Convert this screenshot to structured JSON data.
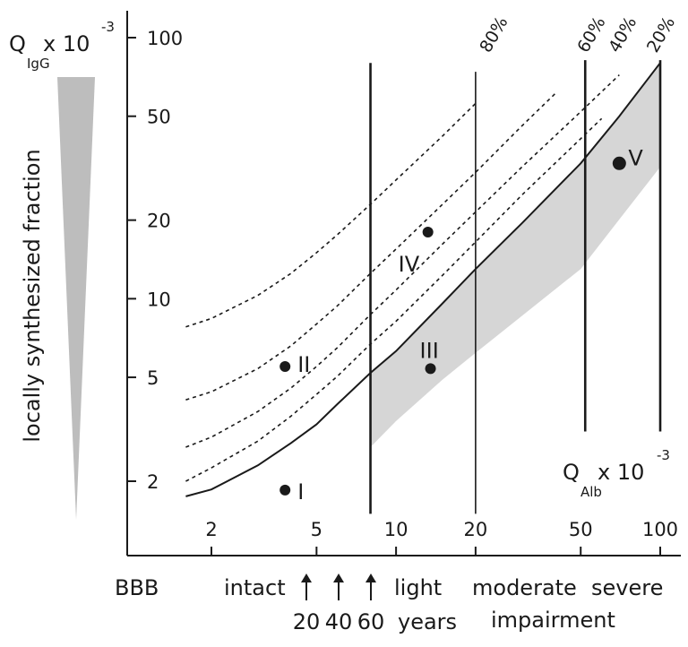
{
  "chart_data": {
    "type": "line",
    "title": "",
    "scale": "log-log",
    "y_axis": {
      "label_main": "Q",
      "label_sub": "IgG",
      "label_mult": "x 10",
      "label_exp": "-3",
      "range": [
        1.5,
        100
      ],
      "ticks": [
        {
          "value": 100,
          "label": "100"
        },
        {
          "value": 50,
          "label": "50"
        },
        {
          "value": 20,
          "label": "20"
        },
        {
          "value": 10,
          "label": "10"
        },
        {
          "value": 5,
          "label": "5"
        },
        {
          "value": 2,
          "label": "2"
        }
      ]
    },
    "x_axis": {
      "label_main": "Q",
      "label_sub": "Alb",
      "label_mult": "x 10",
      "label_exp": "-3",
      "range": [
        1.3,
        100
      ],
      "ticks": [
        {
          "value": 2,
          "label": "2"
        },
        {
          "value": 5,
          "label": "5"
        },
        {
          "value": 10,
          "label": "10"
        },
        {
          "value": 20,
          "label": "20"
        },
        {
          "value": 50,
          "label": "50"
        },
        {
          "value": 100,
          "label": "100"
        }
      ]
    },
    "vertical_lines": [
      {
        "x": 8,
        "y_top": 80,
        "y_bottom": 1.5,
        "weight": "thick"
      },
      {
        "x": 20,
        "y_top": 74,
        "y_bottom": 1.5,
        "weight": "thin"
      },
      {
        "x": 52,
        "y_top": 82,
        "y_bottom": 3.1,
        "weight": "thick"
      },
      {
        "x": 100,
        "y_top": 82,
        "y_bottom": 3.1,
        "weight": "thick"
      }
    ],
    "series": [
      {
        "style": "solid",
        "x": [
          1.6,
          2,
          3,
          4,
          5,
          6,
          8,
          10,
          15,
          20,
          30,
          50,
          70,
          100
        ],
        "y": [
          1.75,
          1.86,
          2.3,
          2.8,
          3.3,
          3.95,
          5.2,
          6.3,
          9.6,
          13,
          19.5,
          33,
          50,
          80
        ]
      },
      {
        "style": "dashed",
        "percent": "20%",
        "x": [
          1.6,
          2,
          3,
          4,
          5,
          6,
          8,
          10,
          15,
          20,
          30,
          50,
          60
        ],
        "y": [
          2.0,
          2.25,
          2.85,
          3.55,
          4.3,
          5.05,
          6.7,
          8.2,
          12.3,
          16.5,
          25,
          41,
          49
        ]
      },
      {
        "style": "dashed",
        "percent": "40%",
        "x": [
          1.6,
          2,
          3,
          4,
          5,
          6,
          8,
          10,
          15,
          20,
          30,
          50,
          70
        ],
        "y": [
          2.7,
          2.95,
          3.7,
          4.55,
          5.5,
          6.5,
          8.7,
          10.8,
          16.2,
          21.5,
          32,
          52,
          72
        ]
      },
      {
        "style": "dashed",
        "percent": "60%",
        "x": [
          1.6,
          2,
          3,
          4,
          5,
          6,
          8,
          10,
          15,
          20,
          30,
          40
        ],
        "y": [
          4.1,
          4.4,
          5.4,
          6.6,
          8,
          9.4,
          12.5,
          15.5,
          23,
          30.5,
          46,
          61
        ]
      },
      {
        "style": "dashed",
        "percent": "80%",
        "x": [
          1.6,
          2,
          3,
          4,
          5,
          6,
          8,
          10,
          15,
          20
        ],
        "y": [
          7.8,
          8.4,
          10.3,
          12.5,
          15,
          17.6,
          23,
          28.5,
          42,
          56
        ]
      }
    ],
    "percent_labels": [
      {
        "text": "80%",
        "x": 20.5
      },
      {
        "text": "60%",
        "x": 48
      },
      {
        "text": "40%",
        "x": 63
      },
      {
        "text": "20%",
        "x": 88
      }
    ],
    "shaded_region": {
      "upper_x": [
        8,
        10,
        15,
        20,
        30,
        50,
        70,
        100
      ],
      "upper_y": [
        5.2,
        6.3,
        9.6,
        13,
        19.5,
        33,
        50,
        80
      ],
      "lower_x": [
        100,
        50,
        20,
        15,
        10,
        8
      ],
      "lower_y": [
        32,
        13,
        6.2,
        4.9,
        3.4,
        2.7
      ]
    },
    "points": [
      {
        "name": "I",
        "x": 3.8,
        "y": 1.85,
        "size": "small"
      },
      {
        "name": "II",
        "x": 3.8,
        "y": 5.5,
        "size": "small"
      },
      {
        "name": "III",
        "x": 13.5,
        "y": 5.4,
        "size": "small"
      },
      {
        "name": "IV",
        "x": 13.2,
        "y": 18,
        "size": "small"
      },
      {
        "name": "V",
        "x": 70,
        "y": 33,
        "size": "large"
      }
    ],
    "left_gradient_label": "locally synthesized fraction",
    "bbb_row": {
      "title": "BBB",
      "intact": "intact",
      "light": "light",
      "moderate": "moderate",
      "severe": "severe",
      "impairment": "impairment",
      "ages": [
        "20",
        "40",
        "60"
      ],
      "years": "years"
    }
  }
}
